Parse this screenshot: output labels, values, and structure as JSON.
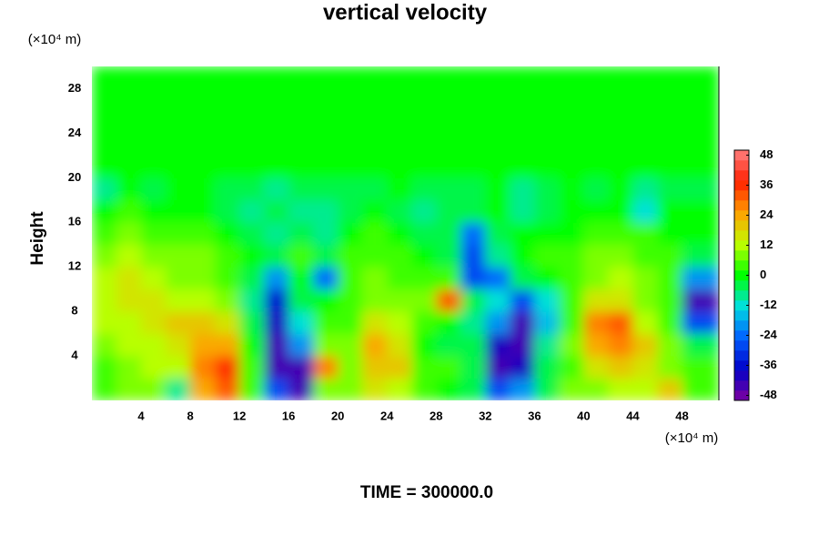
{
  "chart_data": {
    "type": "contour",
    "title": "vertical velocity",
    "y_unit_label": "(×10⁴ m)",
    "y_label": "Height",
    "x_unit_label": "(×10⁴ m)",
    "footer": "TIME = 300000.0",
    "xlim": [
      0,
      51
    ],
    "ylim": [
      0,
      30
    ],
    "xticks": [
      4,
      8,
      12,
      16,
      20,
      24,
      28,
      32,
      36,
      40,
      44,
      48
    ],
    "yticks": [
      4,
      8,
      12,
      16,
      20,
      24,
      28
    ],
    "x": [
      1,
      3,
      5,
      7,
      9,
      11,
      13,
      15,
      17,
      19,
      21,
      23,
      25,
      27,
      29,
      31,
      33,
      35,
      37,
      39,
      41,
      43,
      45,
      47,
      49
    ],
    "y": [
      1,
      3,
      5,
      7,
      9,
      11,
      13,
      15,
      17,
      19,
      21,
      23,
      25,
      27,
      29
    ],
    "z": [
      [
        4,
        6,
        6,
        -8,
        24,
        30,
        4,
        -30,
        -46,
        8,
        6,
        14,
        10,
        2,
        0,
        -6,
        -30,
        -20,
        -4,
        6,
        8,
        10,
        12,
        20,
        4
      ],
      [
        5,
        8,
        10,
        12,
        28,
        34,
        2,
        -44,
        -46,
        26,
        8,
        20,
        18,
        2,
        2,
        -4,
        -46,
        -40,
        -6,
        4,
        14,
        20,
        16,
        8,
        2
      ],
      [
        8,
        10,
        12,
        16,
        22,
        24,
        0,
        -46,
        -20,
        6,
        6,
        22,
        16,
        0,
        -4,
        -6,
        -40,
        -44,
        -10,
        6,
        24,
        28,
        18,
        6,
        -6
      ],
      [
        10,
        12,
        14,
        20,
        18,
        14,
        -4,
        -40,
        -12,
        4,
        4,
        14,
        10,
        2,
        0,
        -8,
        -20,
        -46,
        -16,
        4,
        26,
        30,
        12,
        4,
        -30
      ],
      [
        12,
        14,
        14,
        12,
        10,
        8,
        -10,
        -36,
        -4,
        0,
        2,
        8,
        6,
        8,
        30,
        -6,
        -14,
        -30,
        -12,
        4,
        14,
        16,
        8,
        2,
        -44
      ],
      [
        10,
        14,
        12,
        8,
        6,
        4,
        -4,
        -20,
        0,
        -24,
        4,
        6,
        4,
        2,
        4,
        -30,
        -24,
        -6,
        0,
        4,
        8,
        10,
        6,
        4,
        -20
      ],
      [
        8,
        10,
        8,
        6,
        6,
        4,
        0,
        -4,
        2,
        -6,
        2,
        4,
        2,
        0,
        -4,
        -30,
        -10,
        0,
        2,
        4,
        6,
        8,
        4,
        2,
        -4
      ],
      [
        4,
        6,
        4,
        2,
        2,
        0,
        -6,
        -8,
        -4,
        -10,
        -2,
        2,
        0,
        -4,
        -6,
        -26,
        -4,
        -2,
        -2,
        0,
        2,
        4,
        2,
        0,
        -2
      ],
      [
        0,
        2,
        -2,
        0,
        0,
        -4,
        -8,
        -6,
        -10,
        -8,
        -4,
        -2,
        -4,
        -10,
        -6,
        -4,
        0,
        -8,
        -4,
        -2,
        0,
        -2,
        -12,
        -2,
        0
      ],
      [
        -8,
        -2,
        -4,
        -2,
        -2,
        -6,
        -4,
        -8,
        -6,
        -4,
        -6,
        -4,
        -2,
        -6,
        -4,
        -4,
        -2,
        -10,
        -4,
        -2,
        -4,
        -2,
        -10,
        -4,
        -6
      ],
      [
        -2,
        -2,
        -2,
        -2,
        -2,
        -2,
        -2,
        -2,
        -2,
        -2,
        -2,
        -2,
        -2,
        -2,
        -2,
        -2,
        -2,
        -2,
        -2,
        -2,
        -2,
        -2,
        -2,
        -2,
        -2
      ],
      [
        -2,
        -2,
        -2,
        -2,
        -2,
        -2,
        -2,
        -2,
        -2,
        -2,
        -2,
        -2,
        -2,
        -2,
        -2,
        -2,
        -2,
        -2,
        -2,
        -2,
        -2,
        -2,
        -2,
        -2,
        -2
      ],
      [
        -2,
        -2,
        -2,
        -2,
        -2,
        -2,
        -2,
        -2,
        -2,
        -2,
        -2,
        -2,
        -2,
        -2,
        -2,
        -2,
        -2,
        -2,
        -2,
        -2,
        -2,
        -2,
        -2,
        -2,
        -2
      ],
      [
        -2,
        -2,
        -2,
        -2,
        -2,
        -2,
        -2,
        -2,
        -2,
        -2,
        -2,
        -2,
        -2,
        -2,
        -2,
        -2,
        -2,
        -2,
        -2,
        -2,
        -2,
        -2,
        -2,
        -2,
        -2
      ],
      [
        -2,
        -2,
        -2,
        -2,
        -2,
        -2,
        -2,
        -2,
        -2,
        -2,
        -2,
        -2,
        -2,
        -2,
        -2,
        -2,
        -2,
        -2,
        -2,
        -2,
        -2,
        -2,
        -2,
        -2,
        -2
      ]
    ],
    "clim": [
      -50,
      50
    ],
    "colorbar_ticks": [
      -48,
      -36,
      -24,
      -12,
      0,
      12,
      24,
      36,
      48
    ],
    "colormap": [
      "#8000a0",
      "#0000c8",
      "#0060ff",
      "#00e0e0",
      "#00ff00",
      "#c0ff00",
      "#ffa000",
      "#ff2000",
      "#ff8080"
    ]
  }
}
